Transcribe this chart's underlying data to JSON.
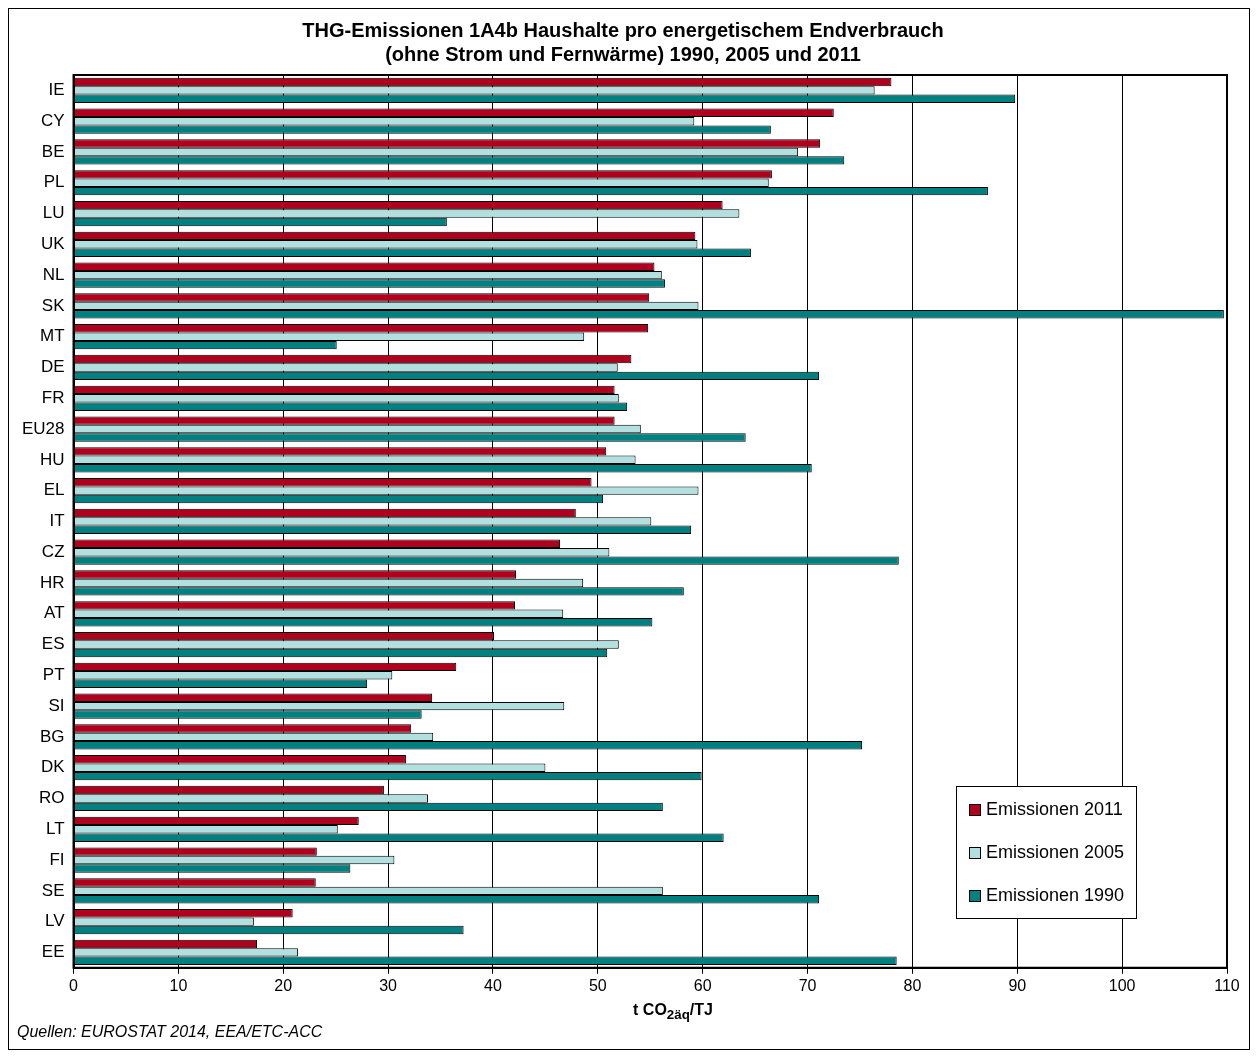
{
  "chart_data": {
    "type": "bar",
    "orientation": "horizontal",
    "title": "THG-Emissionen 1A4b Haushalte pro energetischem Endverbrauch\n(ohne Strom und Fernwärme) 1990, 2005 und 2011",
    "xlabel": "t CO$_{2äq}$/TJ",
    "annotations": [
      "Quellen: EUROSTAT 2014, EEA/ETC-ACC"
    ],
    "categories": [
      "IE",
      "CY",
      "BE",
      "PL",
      "LU",
      "UK",
      "NL",
      "SK",
      "MT",
      "DE",
      "FR",
      "EU28",
      "HU",
      "EL",
      "IT",
      "CZ",
      "HR",
      "AT",
      "ES",
      "PT",
      "SI",
      "BG",
      "DK",
      "RO",
      "LT",
      "FI",
      "SE",
      "LV",
      "EE"
    ],
    "series": [
      {
        "name": "Emissionen 2011",
        "color": "#b0001e",
        "values": [
          78.0,
          72.5,
          71.2,
          66.6,
          61.9,
          59.3,
          55.4,
          54.9,
          54.8,
          53.2,
          51.6,
          51.6,
          50.8,
          49.4,
          47.9,
          46.4,
          42.2,
          42.1,
          40.1,
          36.5,
          34.2,
          32.2,
          31.7,
          29.6,
          27.2,
          23.2,
          23.1,
          20.9,
          17.5
        ]
      },
      {
        "name": "Emissionen 2005",
        "color": "#b2e0e0",
        "values": [
          76.4,
          59.2,
          69.1,
          66.3,
          63.5,
          59.5,
          56.1,
          59.6,
          48.7,
          51.9,
          52.0,
          54.1,
          53.6,
          59.6,
          55.1,
          51.1,
          48.6,
          46.7,
          52.0,
          30.4,
          46.8,
          34.3,
          45.0,
          33.8,
          25.2,
          30.6,
          56.2,
          17.2,
          21.4
        ]
      },
      {
        "name": "Emissionen 1990",
        "color": "#008080",
        "values": [
          89.8,
          66.5,
          73.5,
          87.2,
          35.6,
          64.6,
          56.4,
          109.7,
          25.1,
          71.1,
          52.8,
          64.1,
          70.4,
          50.5,
          58.9,
          78.7,
          58.2,
          55.2,
          50.9,
          28.0,
          33.2,
          75.2,
          59.9,
          56.2,
          62.0,
          26.4,
          71.1,
          37.2,
          78.5
        ]
      }
    ],
    "xlim": [
      0,
      110
    ],
    "xticks": [
      0,
      10,
      20,
      30,
      40,
      50,
      60,
      70,
      80,
      90,
      100,
      110
    ],
    "grid": "x",
    "legend": "bottom right"
  }
}
